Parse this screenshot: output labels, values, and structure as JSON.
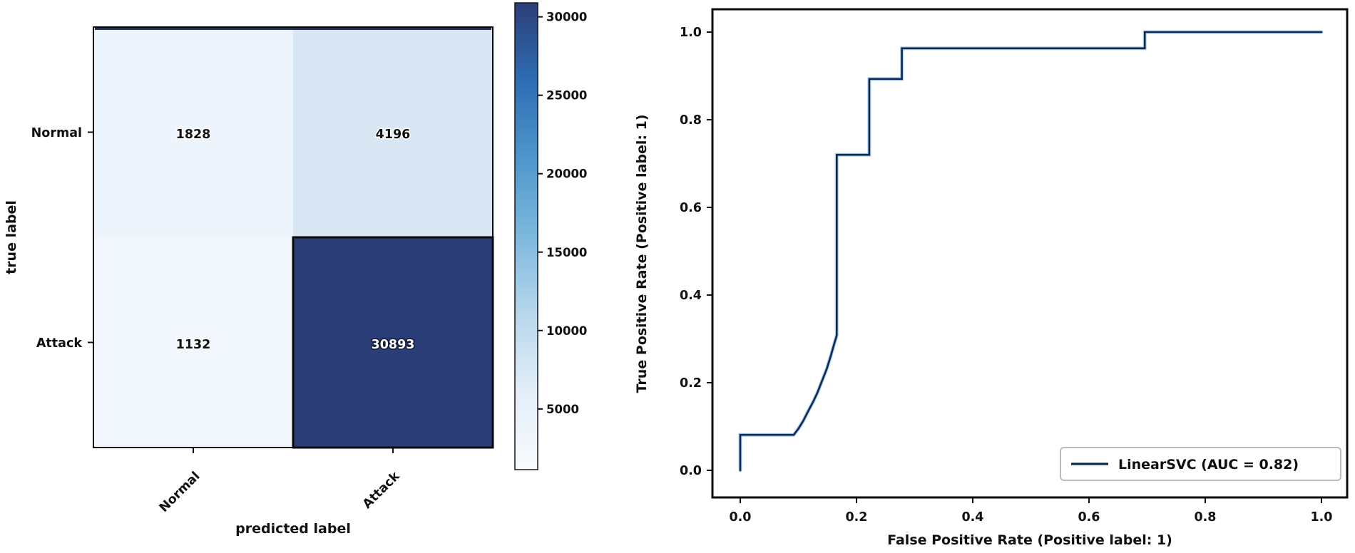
{
  "figure": {
    "background": "#ffffff",
    "text_color": "#111111",
    "spine_color": "#0b0b0b"
  },
  "chart_data": [
    {
      "type": "heatmap",
      "title": "",
      "xlabel": "predicted label",
      "ylabel": "true label",
      "x_categories": [
        "Normal",
        "Attack"
      ],
      "y_categories": [
        "Normal",
        "Attack"
      ],
      "matrix": [
        [
          1828,
          4196
        ],
        [
          1132,
          30893
        ]
      ],
      "cell_colors": [
        [
          "#eef4fb",
          "#d9e6f4"
        ],
        [
          "#f1f7fc",
          "#2b3d77"
        ]
      ],
      "cell_text_styles": [
        [
          "light",
          "light"
        ],
        [
          "light",
          "dark"
        ]
      ],
      "colormap": "Blues",
      "colorbar": {
        "vmin": 1132,
        "vmax": 30893,
        "ticks": [
          5000,
          10000,
          15000,
          20000,
          25000,
          30000
        ],
        "gradient": [
          "#2b3e78",
          "#2e6db4",
          "#4e97cc",
          "#7db8dd",
          "#b7d7ec",
          "#e3eef8",
          "#f7fbfe"
        ],
        "top_edge_color": "#1c2f63"
      }
    },
    {
      "type": "line",
      "title": "",
      "xlabel": "False Positive Rate (Positive label: 1)",
      "ylabel": "True Positive Rate (Positive label: 1)",
      "xticks": [
        0.0,
        0.2,
        0.4,
        0.6,
        0.8,
        1.0
      ],
      "yticks": [
        0.0,
        0.2,
        0.4,
        0.6,
        0.8,
        1.0
      ],
      "xlim": [
        -0.05,
        1.05
      ],
      "ylim": [
        -0.05,
        1.05
      ],
      "grid": false,
      "legend": {
        "position": "lower right",
        "entries": [
          {
            "label": "LinearSVC (AUC = 0.82)",
            "color": "#0e2a52"
          }
        ]
      },
      "series": [
        {
          "name": "LinearSVC",
          "auc": 0.82,
          "color": "#0e2a52",
          "halo_color": "#6aa7dd",
          "points": [
            [
              0.0,
              0.0
            ],
            [
              0.0,
              0.081
            ],
            [
              0.092,
              0.081
            ],
            [
              0.1,
              0.095
            ],
            [
              0.108,
              0.112
            ],
            [
              0.118,
              0.138
            ],
            [
              0.126,
              0.158
            ],
            [
              0.133,
              0.178
            ],
            [
              0.141,
              0.205
            ],
            [
              0.149,
              0.232
            ],
            [
              0.156,
              0.262
            ],
            [
              0.162,
              0.29
            ],
            [
              0.166,
              0.308
            ],
            [
              0.166,
              0.72
            ],
            [
              0.222,
              0.72
            ],
            [
              0.222,
              0.893
            ],
            [
              0.278,
              0.893
            ],
            [
              0.278,
              0.963
            ],
            [
              0.696,
              0.963
            ],
            [
              0.696,
              1.0
            ],
            [
              1.0,
              1.0
            ]
          ]
        }
      ]
    }
  ]
}
